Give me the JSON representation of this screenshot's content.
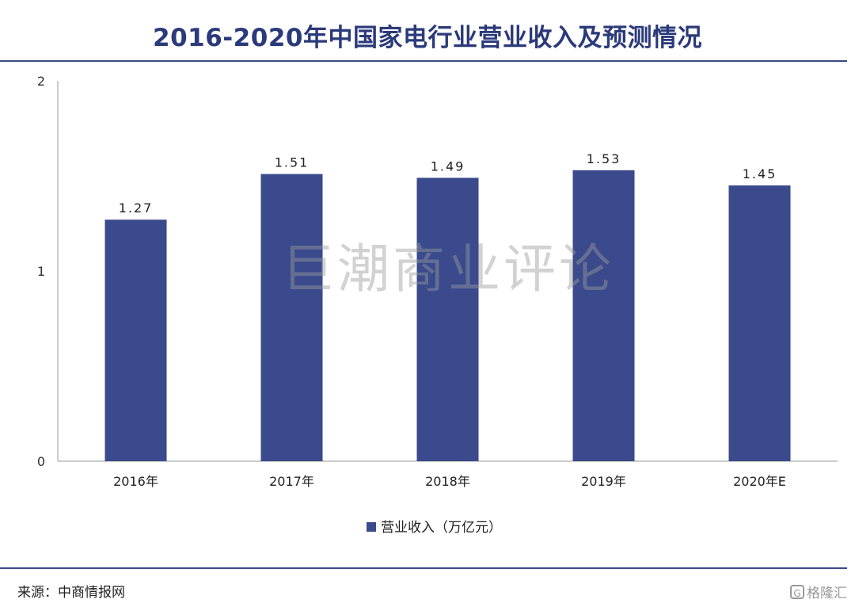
{
  "header": {
    "title": "2016-2020年中国家电行业营业收入及预测情况"
  },
  "watermark": "巨潮商业评论",
  "source": "来源：中商情报网",
  "logo": {
    "text": "格隆汇",
    "icon": "gelonghui-logo-icon"
  },
  "colors": {
    "bar": "#3a4a8c",
    "title": "#2b3a7a",
    "axis": "#999999",
    "rule": "#3a4a86"
  },
  "chart_data": {
    "type": "bar",
    "categories": [
      "2016年",
      "2017年",
      "2018年",
      "2019年",
      "2020年E"
    ],
    "series": [
      {
        "name": "营业收入（万亿元）",
        "values": [
          1.27,
          1.51,
          1.49,
          1.53,
          1.45
        ]
      }
    ],
    "data_labels": [
      "1.27",
      "1.51",
      "1.49",
      "1.53",
      "1.45"
    ],
    "ylim": [
      0,
      2
    ],
    "yticks": [
      "0",
      "1",
      "2"
    ],
    "grid": false,
    "legend": "bottom-center"
  }
}
